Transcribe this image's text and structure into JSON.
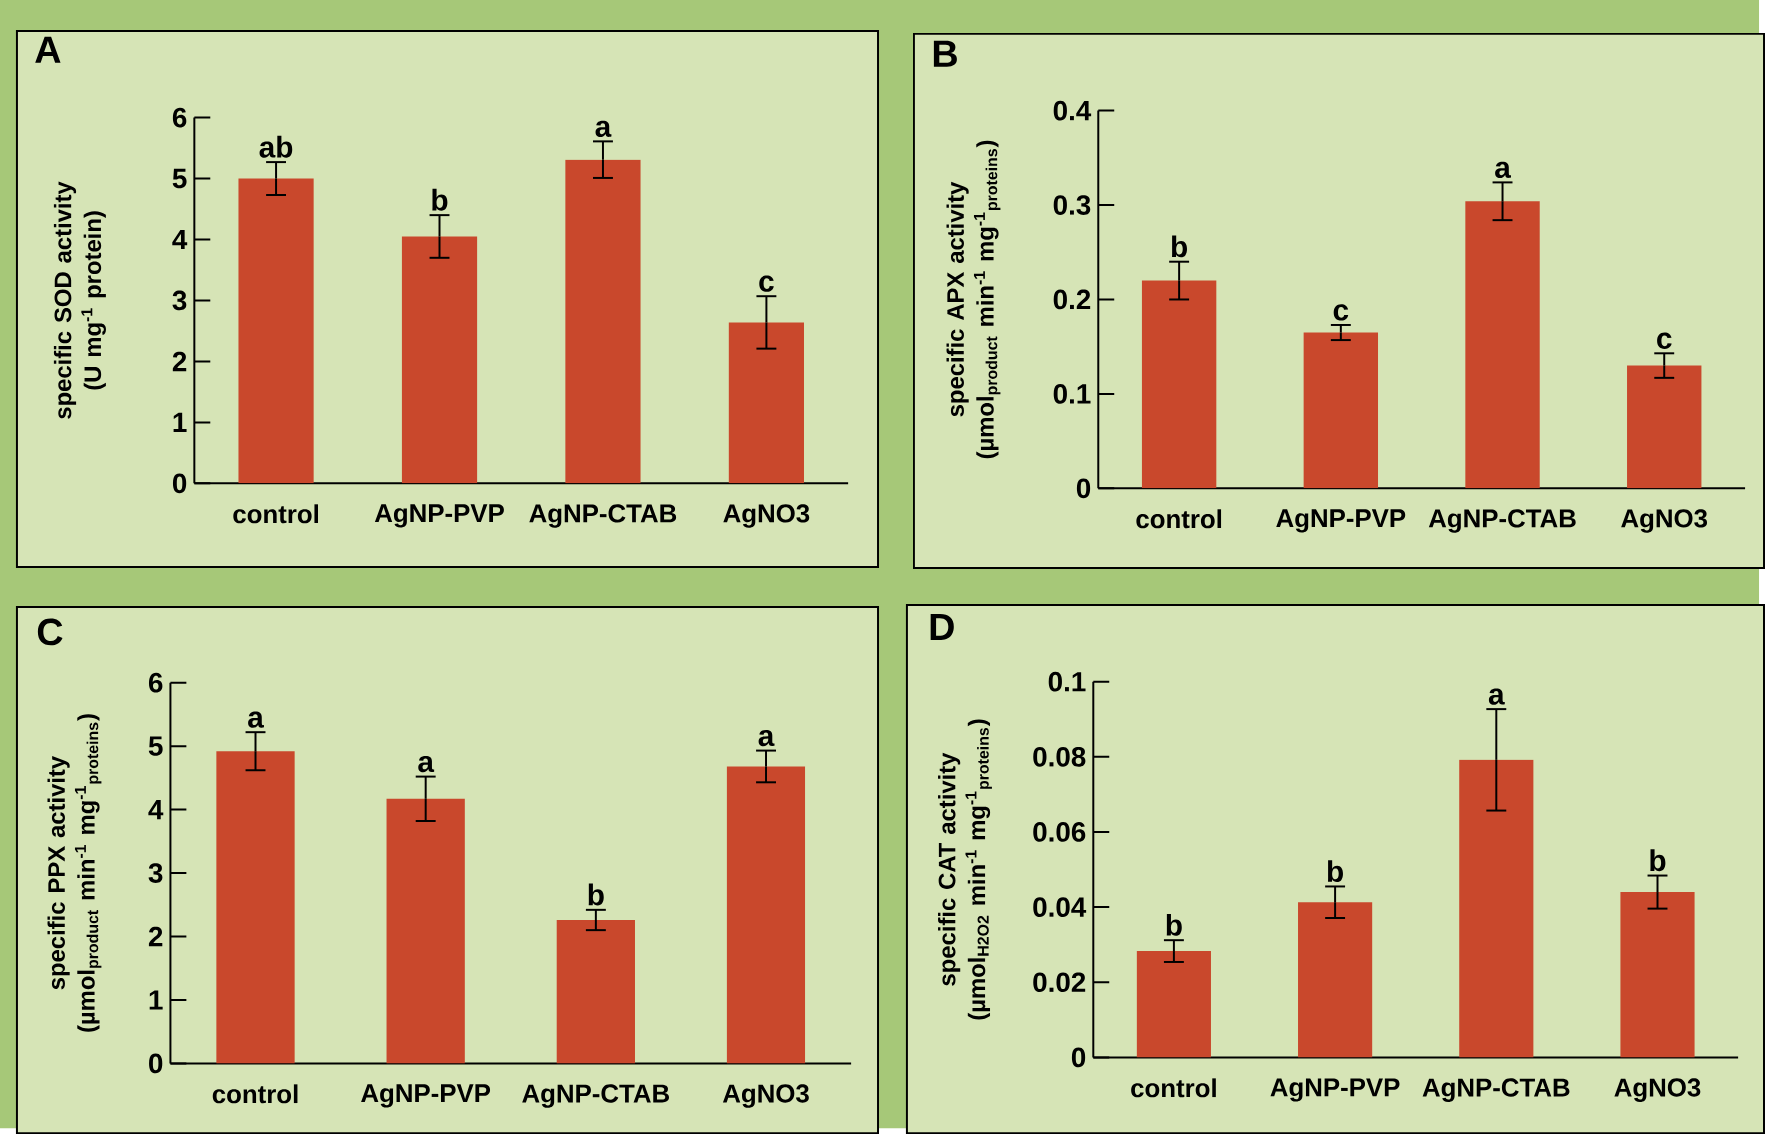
{
  "chart_data": [
    {
      "type": "bar",
      "title": "A",
      "ylabel": "specific SOD activity (U mg$^{-1}$ protein)",
      "categories": [
        "control",
        "AgNP-PVP",
        "AgNP-CTAB",
        "AgNO3"
      ],
      "values": [
        5.0,
        4.05,
        5.31,
        2.64
      ],
      "errors": [
        0.27,
        0.35,
        0.3,
        0.43
      ],
      "color": "#c9482c",
      "ylim": [
        0,
        6
      ],
      "yticks": [
        0,
        1,
        2,
        3,
        4,
        5,
        6
      ],
      "annotations": [
        {
          "text": "ab",
          "x": "control",
          "y": 5.27
        },
        {
          "text": "b",
          "x": "AgNP-PVP",
          "y": 4.4
        },
        {
          "text": "a",
          "x": "AgNP-CTAB",
          "y": 5.61
        },
        {
          "text": "c",
          "x": "AgNO3",
          "y": 3.07
        }
      ]
    },
    {
      "type": "bar",
      "title": "B",
      "ylabel": "specific APX activity (µmol$_{product}$ min$^{-1}$ mg$^{-1}$$_{proteins}$)",
      "categories": [
        "control",
        "AgNP-PVP",
        "AgNP-CTAB",
        "AgNO3"
      ],
      "values": [
        0.22,
        0.165,
        0.304,
        0.13
      ],
      "errors": [
        0.02,
        0.008,
        0.02,
        0.013
      ],
      "color": "#c9482c",
      "ylim": [
        0,
        0.4
      ],
      "yticks": [
        0,
        0.1,
        0.2,
        0.3,
        0.4
      ],
      "annotations": [
        {
          "text": "b",
          "x": "control",
          "y": 0.24
        },
        {
          "text": "c",
          "x": "AgNP-PVP",
          "y": 0.173
        },
        {
          "text": "a",
          "x": "AgNP-CTAB",
          "y": 0.324
        },
        {
          "text": "c",
          "x": "AgNO3",
          "y": 0.143
        }
      ]
    },
    {
      "type": "bar",
      "title": "C",
      "ylabel": "specific PPX activity (µmol$_{product}$ min$^{-1}$ mg$^{-1}$$_{proteins}$)",
      "categories": [
        "control",
        "AgNP-PVP",
        "AgNP-CTAB",
        "AgNO3"
      ],
      "values": [
        4.92,
        4.17,
        2.26,
        4.68
      ],
      "errors": [
        0.3,
        0.35,
        0.16,
        0.25
      ],
      "color": "#c9482c",
      "ylim": [
        0,
        6
      ],
      "yticks": [
        0,
        1,
        2,
        3,
        4,
        5,
        6
      ],
      "annotations": [
        {
          "text": "a",
          "x": "control",
          "y": 5.22
        },
        {
          "text": "a",
          "x": "AgNP-PVP",
          "y": 4.52
        },
        {
          "text": "b",
          "x": "AgNP-CTAB",
          "y": 2.42
        },
        {
          "text": "a",
          "x": "AgNO3",
          "y": 4.93
        }
      ]
    },
    {
      "type": "bar",
      "title": "D",
      "ylabel": "specific CAT activity (µmol$_{H2O2}$ min$^{-1}$ mg$^{-1}$$_{proteins}$)",
      "categories": [
        "control",
        "AgNP-PVP",
        "AgNP-CTAB",
        "AgNO3"
      ],
      "values": [
        0.0283,
        0.0413,
        0.0792,
        0.044
      ],
      "errors": [
        0.0029,
        0.0042,
        0.0135,
        0.0044
      ],
      "color": "#c9482c",
      "ylim": [
        0,
        0.1
      ],
      "yticks": [
        0,
        0.02,
        0.04,
        0.06,
        0.08,
        0.1
      ],
      "annotations": [
        {
          "text": "b",
          "x": "control",
          "y": 0.0312
        },
        {
          "text": "b",
          "x": "AgNP-PVP",
          "y": 0.0455
        },
        {
          "text": "a",
          "x": "AgNP-CTAB",
          "y": 0.0927
        },
        {
          "text": "b",
          "x": "AgNO3",
          "y": 0.0484
        }
      ]
    }
  ]
}
